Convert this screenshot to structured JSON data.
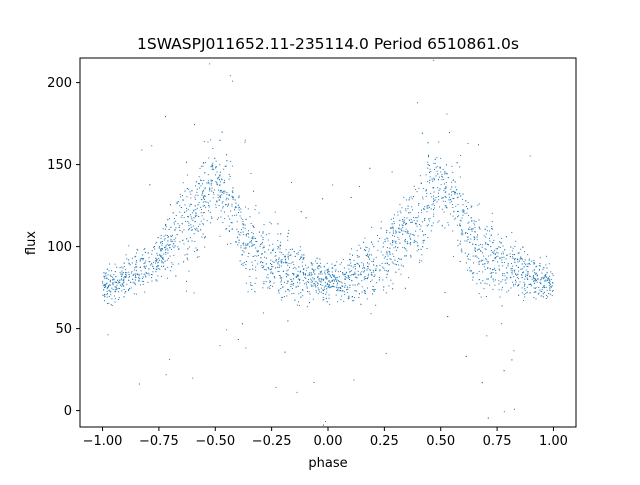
{
  "chart_data": {
    "type": "scatter",
    "title": "1SWASPJ011652.11-235114.0 Period 6510861.0s",
    "xlabel": "phase",
    "ylabel": "flux",
    "xlim": [
      -1.1,
      1.1
    ],
    "ylim": [
      -10,
      215
    ],
    "x_ticks": [
      {
        "value": -1.0,
        "label": "−1.00"
      },
      {
        "value": -0.75,
        "label": "−0.75"
      },
      {
        "value": -0.5,
        "label": "−0.50"
      },
      {
        "value": -0.25,
        "label": "−0.25"
      },
      {
        "value": 0.0,
        "label": "0.00"
      },
      {
        "value": 0.25,
        "label": "0.25"
      },
      {
        "value": 0.5,
        "label": "0.50"
      },
      {
        "value": 0.75,
        "label": "0.75"
      },
      {
        "value": 1.0,
        "label": "1.00"
      }
    ],
    "y_ticks": [
      {
        "value": 0,
        "label": "0"
      },
      {
        "value": 50,
        "label": "50"
      },
      {
        "value": 100,
        "label": "100"
      },
      {
        "value": 150,
        "label": "150"
      },
      {
        "value": 200,
        "label": "200"
      }
    ],
    "grid": false,
    "legend": "none",
    "point_color": "#1f77b4",
    "series": [
      {
        "description_points": "folded light curve, phase repeated from -1 to 1",
        "phase": [
          -1.0,
          -0.95,
          -0.9,
          -0.85,
          -0.8,
          -0.75,
          -0.7,
          -0.65,
          -0.6,
          -0.575,
          -0.55,
          -0.525,
          -0.5,
          -0.475,
          -0.45,
          -0.425,
          -0.4,
          -0.375,
          -0.35,
          -0.3,
          -0.25,
          -0.2,
          -0.15,
          -0.1,
          -0.05,
          0.0,
          0.05,
          0.1,
          0.15,
          0.2,
          0.25,
          0.3,
          0.35,
          0.4,
          0.425,
          0.45,
          0.475,
          0.5,
          0.525,
          0.55,
          0.575,
          0.6,
          0.625,
          0.65,
          0.7,
          0.75,
          0.8,
          0.85,
          0.9,
          0.95,
          1.0
        ],
        "flux_center": [
          78,
          76,
          82,
          85,
          88,
          92,
          105,
          110,
          115,
          120,
          130,
          138,
          140,
          135,
          132,
          125,
          115,
          105,
          100,
          95,
          92,
          88,
          85,
          82,
          80,
          78,
          80,
          82,
          85,
          88,
          92,
          105,
          110,
          115,
          120,
          130,
          138,
          140,
          135,
          132,
          125,
          115,
          105,
          100,
          95,
          92,
          88,
          85,
          82,
          80,
          78
        ],
        "flux_spread": [
          10,
          10,
          12,
          12,
          15,
          15,
          20,
          25,
          25,
          25,
          25,
          22,
          22,
          25,
          25,
          25,
          25,
          25,
          25,
          25,
          22,
          22,
          18,
          15,
          12,
          10,
          12,
          15,
          18,
          22,
          22,
          25,
          25,
          25,
          25,
          25,
          22,
          22,
          25,
          25,
          25,
          25,
          25,
          25,
          25,
          22,
          22,
          18,
          15,
          12,
          10
        ]
      }
    ]
  }
}
